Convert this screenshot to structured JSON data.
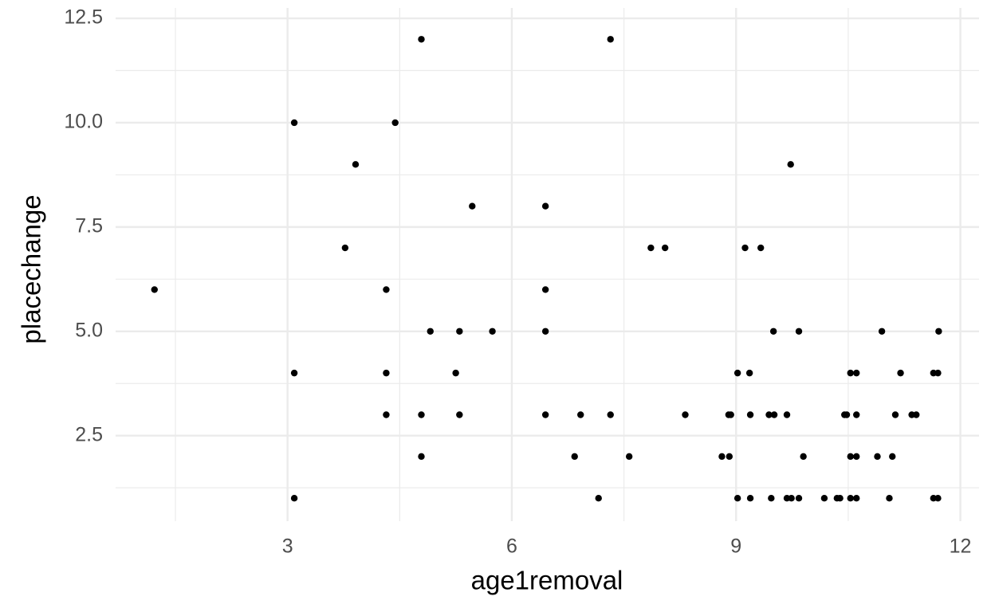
{
  "chart_data": {
    "type": "scatter",
    "x_label": "age1removal",
    "y_label": "placechange",
    "x": [
      1.22,
      3.09,
      3.09,
      3.09,
      3.77,
      3.91,
      4.32,
      4.32,
      4.32,
      4.44,
      4.79,
      4.79,
      4.79,
      4.91,
      5.25,
      5.3,
      5.3,
      5.47,
      5.74,
      6.45,
      6.45,
      6.45,
      6.45,
      6.84,
      6.92,
      7.16,
      7.32,
      7.32,
      7.57,
      7.86,
      8.05,
      8.32,
      8.81,
      8.9,
      8.91,
      8.93,
      9.02,
      9.02,
      9.12,
      9.18,
      9.19,
      9.19,
      9.33,
      9.44,
      9.47,
      9.5,
      9.51,
      9.68,
      9.68,
      9.73,
      9.74,
      9.84,
      9.84,
      9.9,
      10.18,
      10.35,
      10.39,
      10.45,
      10.48,
      10.53,
      10.53,
      10.53,
      10.61,
      10.61,
      10.61,
      10.61,
      10.89,
      10.95,
      11.05,
      11.09,
      11.13,
      11.2,
      11.35,
      11.41,
      11.64,
      11.64,
      11.7,
      11.7,
      11.71
    ],
    "y": [
      6,
      10,
      4,
      1,
      7,
      9,
      6,
      4,
      3,
      10,
      12,
      3,
      2,
      5,
      4,
      5,
      3,
      8,
      5,
      8,
      6,
      5,
      3,
      2,
      3,
      1,
      12,
      3,
      2,
      7,
      7,
      3,
      2,
      3,
      2,
      3,
      4,
      1,
      7,
      4,
      3,
      1,
      7,
      3,
      1,
      5,
      3,
      3,
      1,
      9,
      1,
      5,
      1,
      2,
      1,
      1,
      1,
      3,
      3,
      4,
      2,
      1,
      4,
      3,
      2,
      1,
      2,
      5,
      1,
      2,
      3,
      4,
      3,
      3,
      4,
      1,
      1,
      4,
      5
    ],
    "color": "#000000",
    "xlim": [
      0.7,
      12.25
    ],
    "ylim": [
      0.45,
      12.75
    ],
    "xticks": [
      3,
      6,
      9,
      12
    ],
    "yticks": [
      2.5,
      {
        "value": 5,
        "label": "5.0"
      },
      7.5,
      {
        "value": 10,
        "label": "10.0"
      },
      12.5
    ],
    "x_minor_ticks": [
      1.5,
      4.5,
      7.5,
      10.5
    ],
    "y_minor_ticks": [
      1.25,
      3.75,
      6.25,
      8.75,
      11.25
    ],
    "grid": true
  }
}
